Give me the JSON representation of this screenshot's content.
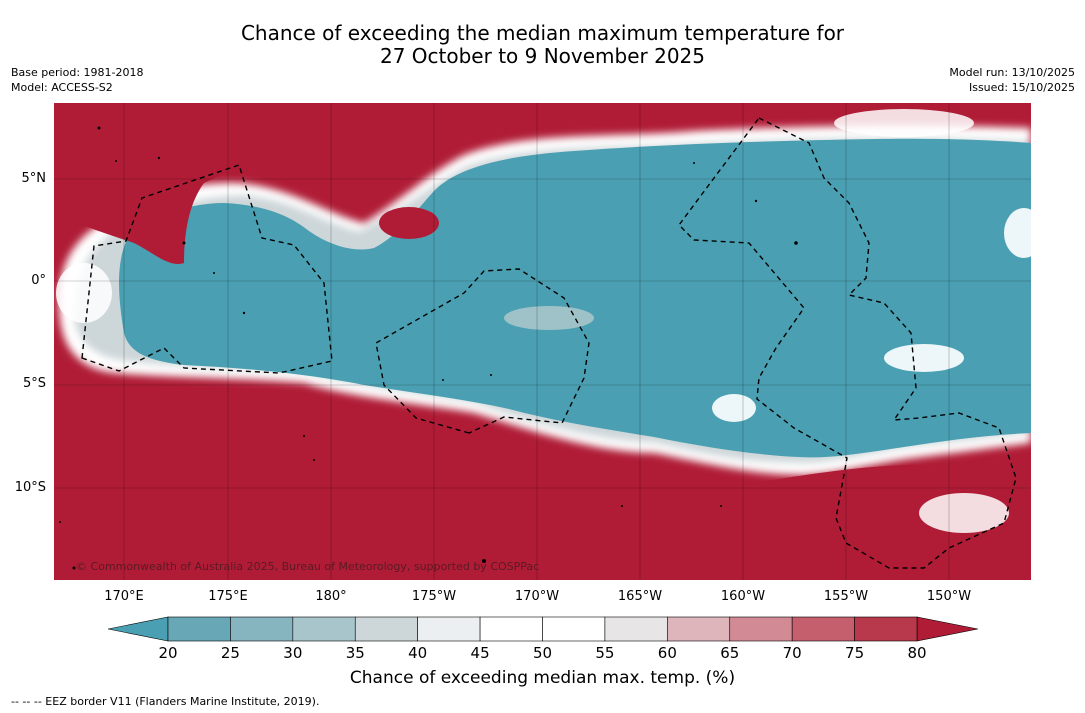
{
  "title_line1": "Chance of exceeding the median maximum temperature for",
  "title_line2": "27 October to 9 November 2025",
  "base_period": "Base period: 1981-2018",
  "model": "Model: ACCESS-S2",
  "model_run": "Model run: 13/10/2025",
  "issued": "Issued: 15/10/2025",
  "copyright": "© Commonwealth of Australia 2025, Bureau of Meteorology, supported by COSPPac",
  "latitude_labels": [
    "5°N",
    "0°",
    "5°S",
    "10°S"
  ],
  "longitude_labels": [
    "170°E",
    "175°E",
    "180°",
    "175°W",
    "170°W",
    "165°W",
    "160°W",
    "155°W",
    "150°W"
  ],
  "colorbar": {
    "label": "Chance of exceeding median max. temp. (%)",
    "ticks": [
      "20",
      "25",
      "30",
      "35",
      "40",
      "45",
      "50",
      "55",
      "60",
      "65",
      "70",
      "75",
      "80"
    ],
    "low_color": "#4aa0b2",
    "high_color": "#b01c36",
    "colors": [
      "#68a8b6",
      "#86b5c0",
      "#a7c5ca",
      "#cdd6d9",
      "#eceff1",
      "#ffffff",
      "#ffffff",
      "#e8e5e6",
      "#ddb5bb",
      "#d28b95",
      "#c55f6d",
      "#b8394c"
    ]
  },
  "legend_note": "--  --  -- EEZ border V11 (Flanders Marine Institute, 2019)."
}
